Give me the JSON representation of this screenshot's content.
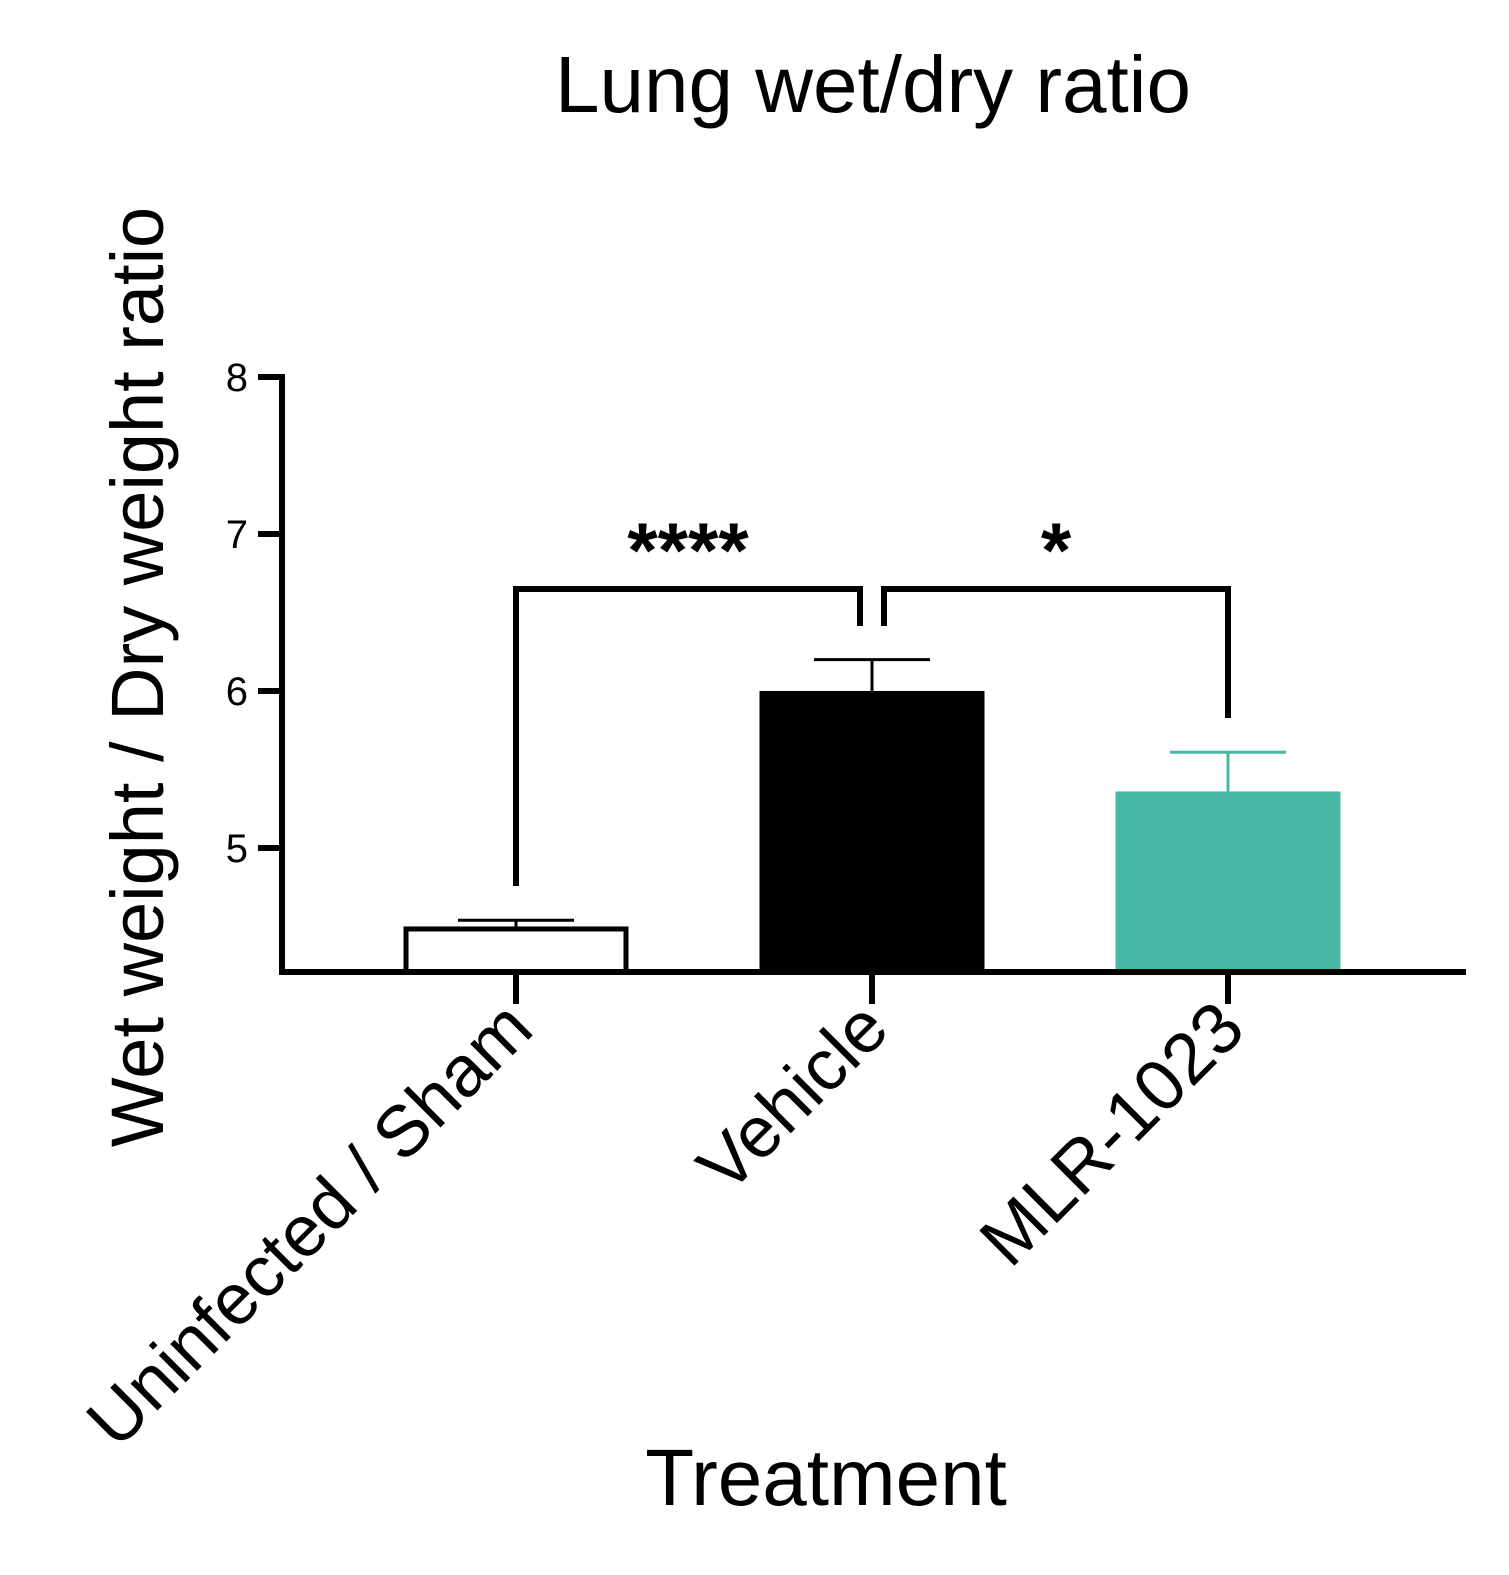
{
  "chart_data": {
    "type": "bar",
    "title": "Lung wet/dry ratio",
    "xlabel": "Treatment",
    "ylabel": "Wet weight / Dry weight ratio",
    "categories": [
      "Uninfected / Sham",
      "Vehicle",
      "MLR-1023"
    ],
    "values": [
      4.5,
      6.0,
      5.36
    ],
    "errors": [
      0.04,
      0.2,
      0.25
    ],
    "colors": [
      "#ffffff",
      "#000000",
      "#48b9a5"
    ],
    "edge_colors": [
      "#000000",
      "#000000",
      "#48b9a5"
    ],
    "error_colors": [
      "#000000",
      "#000000",
      "#48b9a5"
    ],
    "ylim": [
      4.2,
      8
    ],
    "yticks": [
      "5",
      "6",
      "7",
      "8"
    ],
    "grid": false,
    "significance": [
      {
        "from": "Uninfected / Sham",
        "to": "Vehicle",
        "label": "****"
      },
      {
        "from": "Vehicle",
        "to": "MLR-1023",
        "label": "*"
      }
    ]
  }
}
